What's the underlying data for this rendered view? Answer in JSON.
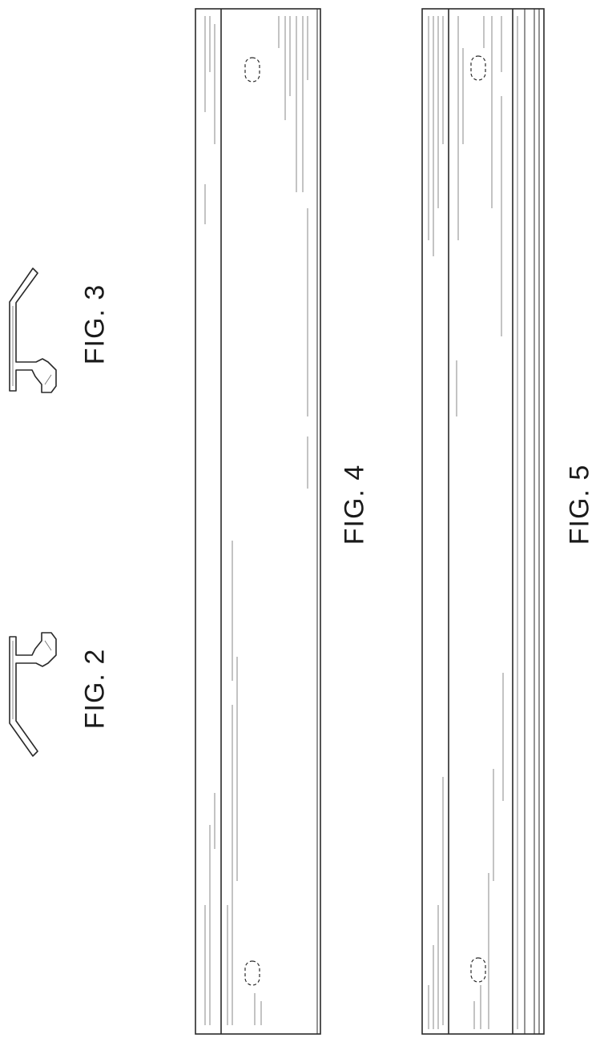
{
  "sheet": {
    "figures": [
      {
        "id": "fig2",
        "label": "FIG. 2",
        "view": "profile-cross-section"
      },
      {
        "id": "fig3",
        "label": "FIG. 3",
        "view": "profile-cross-section-mirrored"
      },
      {
        "id": "fig4",
        "label": "FIG. 4",
        "view": "elongated-bar-view",
        "slots": 2
      },
      {
        "id": "fig5",
        "label": "FIG. 5",
        "view": "elongated-bar-view",
        "slots": 2
      }
    ],
    "colors": {
      "line": "#2a2a2a",
      "shade": "#6a6a6a",
      "background": "#ffffff"
    }
  }
}
